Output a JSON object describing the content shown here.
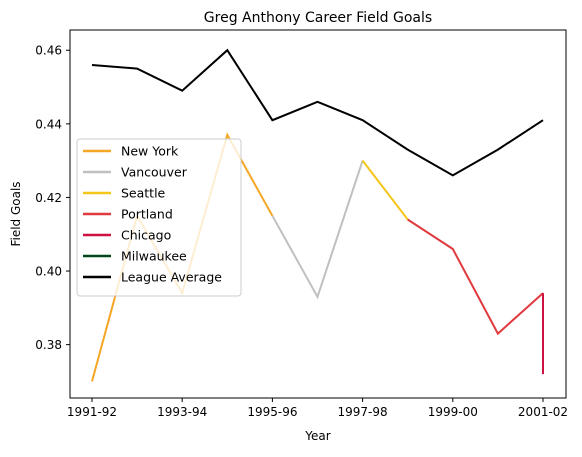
{
  "chart_data": {
    "type": "line",
    "title": "Greg Anthony Career Field Goals",
    "xlabel": "Year",
    "ylabel": "Field Goals",
    "x": [
      "1991-92",
      "1992-93",
      "1993-94",
      "1994-95",
      "1995-96",
      "1996-97",
      "1997-98",
      "1998-99",
      "1999-00",
      "2000-01",
      "2001-02"
    ],
    "x_tick_labels": [
      "1991-92",
      "1993-94",
      "1995-96",
      "1997-98",
      "1999-00",
      "2001-02"
    ],
    "y_tick_labels": [
      "0.38",
      "0.40",
      "0.42",
      "0.44",
      "0.46"
    ],
    "ylim": [
      0.3655,
      0.4655
    ],
    "grid": false,
    "legend_position": "center-left",
    "series": [
      {
        "name": "New York",
        "color": "#F5A623",
        "points": [
          [
            "1991-92",
            0.37
          ],
          [
            "1992-93",
            0.415
          ],
          [
            "1993-94",
            0.394
          ],
          [
            "1994-95",
            0.437
          ],
          [
            "1995-96",
            0.415
          ]
        ]
      },
      {
        "name": "Vancouver",
        "color": "#C0C0C0",
        "points": [
          [
            "1995-96",
            0.415
          ],
          [
            "1996-97",
            0.393
          ],
          [
            "1997-98",
            0.43
          ]
        ]
      },
      {
        "name": "Seattle",
        "color": "#F5C518",
        "points": [
          [
            "1997-98",
            0.43
          ],
          [
            "1998-99",
            0.414
          ]
        ]
      },
      {
        "name": "Portland",
        "color": "#E03A3E",
        "points": [
          [
            "1998-99",
            0.414
          ],
          [
            "1999-00",
            0.406
          ],
          [
            "2000-01",
            0.383
          ],
          [
            "2001-02",
            0.394
          ]
        ]
      },
      {
        "name": "Chicago",
        "color": "#CE1141",
        "points": [
          [
            "2001-02",
            0.394
          ],
          [
            "2001-02",
            0.372
          ]
        ]
      },
      {
        "name": "Milwaukee",
        "color": "#00471B",
        "points": []
      },
      {
        "name": "League Average",
        "color": "#000000",
        "points": [
          [
            "1991-92",
            0.456
          ],
          [
            "1992-93",
            0.455
          ],
          [
            "1993-94",
            0.449
          ],
          [
            "1994-95",
            0.46
          ],
          [
            "1995-96",
            0.441
          ],
          [
            "1996-97",
            0.446
          ],
          [
            "1997-98",
            0.441
          ],
          [
            "1998-99",
            0.433
          ],
          [
            "1999-00",
            0.426
          ],
          [
            "2000-01",
            0.433
          ],
          [
            "2001-02",
            0.441
          ]
        ]
      }
    ]
  }
}
